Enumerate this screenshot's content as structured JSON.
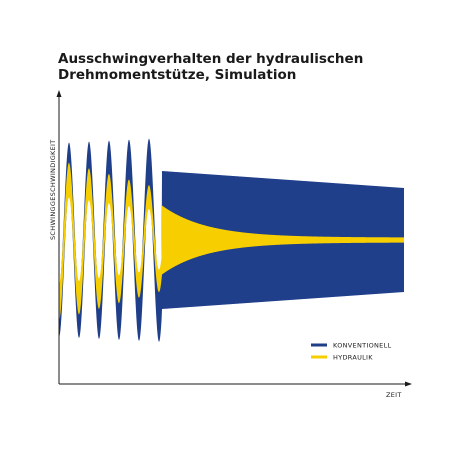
{
  "chart_data": {
    "type": "line",
    "title": [
      "Ausschwingverhalten der hydraulischen",
      "Drehmomentstütze, Simulation"
    ],
    "xlabel": "ZEIT",
    "ylabel": "SCHWINGGESCHWINDIGKEIT",
    "grid": false,
    "legend_position": "bottom-right",
    "series": [
      {
        "name": "KONVENTIONELL",
        "color": "#1f3f8a"
      },
      {
        "name": "HYDRAULIK",
        "color": "#f7cf00"
      }
    ]
  }
}
